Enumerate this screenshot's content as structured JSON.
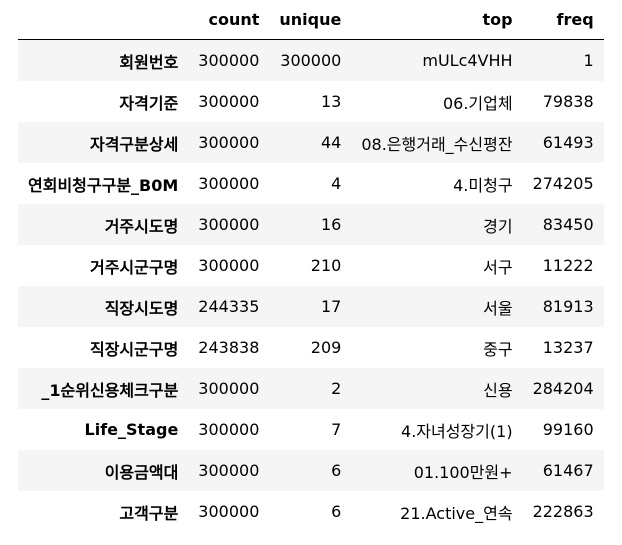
{
  "table": {
    "columns": [
      "count",
      "unique",
      "top",
      "freq"
    ],
    "rows": [
      {
        "index": "회원번호",
        "count": "300000",
        "unique": "300000",
        "top": "mULc4VHH",
        "freq": "1"
      },
      {
        "index": "자격기준",
        "count": "300000",
        "unique": "13",
        "top": "06.기업체",
        "freq": "79838"
      },
      {
        "index": "자격구분상세",
        "count": "300000",
        "unique": "44",
        "top": "08.은행거래_수신평잔",
        "freq": "61493"
      },
      {
        "index": "연회비청구구분_B0M",
        "count": "300000",
        "unique": "4",
        "top": "4.미청구",
        "freq": "274205"
      },
      {
        "index": "거주시도명",
        "count": "300000",
        "unique": "16",
        "top": "경기",
        "freq": "83450"
      },
      {
        "index": "거주시군구명",
        "count": "300000",
        "unique": "210",
        "top": "서구",
        "freq": "11222"
      },
      {
        "index": "직장시도명",
        "count": "244335",
        "unique": "17",
        "top": "서울",
        "freq": "81913"
      },
      {
        "index": "직장시군구명",
        "count": "243838",
        "unique": "209",
        "top": "중구",
        "freq": "13237"
      },
      {
        "index": "_1순위신용체크구분",
        "count": "300000",
        "unique": "2",
        "top": "신용",
        "freq": "284204"
      },
      {
        "index": "Life_Stage",
        "count": "300000",
        "unique": "7",
        "top": "4.자녀성장기(1)",
        "freq": "99160"
      },
      {
        "index": "이용금액대",
        "count": "300000",
        "unique": "6",
        "top": "01.100만원+",
        "freq": "61467"
      },
      {
        "index": "고객구분",
        "count": "300000",
        "unique": "6",
        "top": "21.Active_연속",
        "freq": "222863"
      }
    ]
  }
}
